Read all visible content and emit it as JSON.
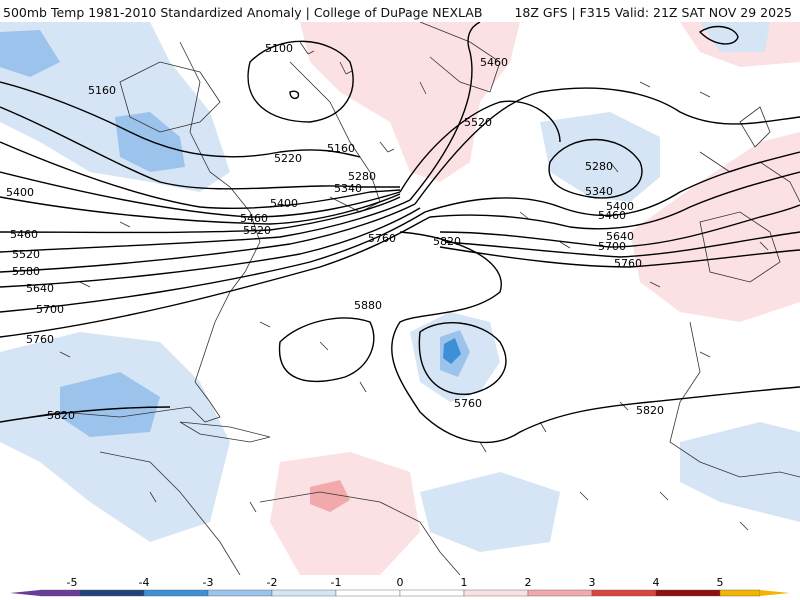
{
  "header": {
    "left_title": "500mb Temp 1981-2010 Standardized Anomaly | College of DuPage NEXLAB",
    "right_title": "18Z GFS | F315 Valid: 21Z SAT NOV 29 2025"
  },
  "colors": {
    "anomaly_neg5": "#6a3d9a",
    "anomaly_neg4": "#22437a",
    "anomaly_neg3": "#3d8fd6",
    "anomaly_neg2": "#9cc3ec",
    "anomaly_neg1": "#d6e5f5",
    "anomaly_zero": "#ffffff",
    "anomaly_pos1": "#fbe1e3",
    "anomaly_pos2": "#f2a9ab",
    "anomaly_pos3": "#d9453f",
    "anomaly_pos4": "#8e1010",
    "anomaly_pos5": "#f5b400",
    "contour": "#000000",
    "coastline": "#333333"
  },
  "height_contour_labels": [
    "5100",
    "5160",
    "5220",
    "5160",
    "5280",
    "5340",
    "5400",
    "5460",
    "5520",
    "5400",
    "5460",
    "5520",
    "5580",
    "5640",
    "5700",
    "5760",
    "5460",
    "5520",
    "5280",
    "5340",
    "5400",
    "5460",
    "5640",
    "5700",
    "5760",
    "5760",
    "5820",
    "5880",
    "5760",
    "5820",
    "5820"
  ],
  "colorbar": {
    "ticks": [
      "-5",
      "-4",
      "-3",
      "-2",
      "-1",
      "0",
      "1",
      "2",
      "3",
      "4",
      "5"
    ]
  }
}
